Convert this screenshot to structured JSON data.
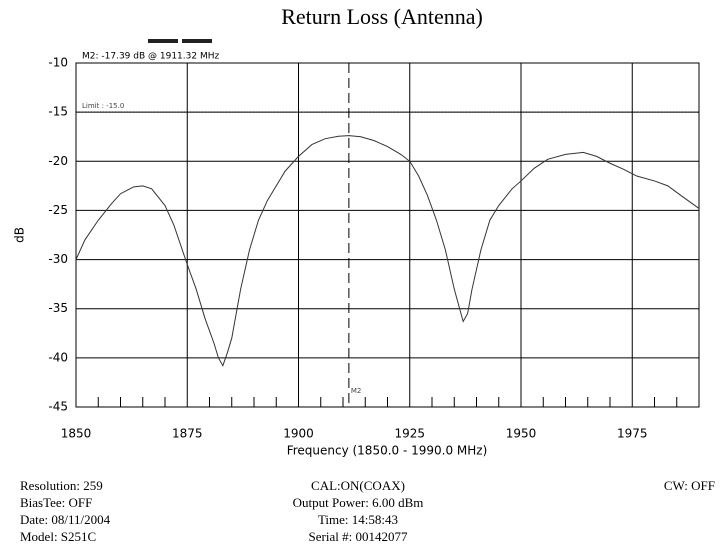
{
  "chart_data": {
    "type": "line",
    "title": "Return Loss (Antenna)",
    "x_label": "Frequency (1850.0 - 1990.0 MHz)",
    "y_label": "dB",
    "xlim": [
      1850,
      1990
    ],
    "xticks": [
      1850,
      1875,
      1900,
      1925,
      1950,
      1975
    ],
    "ylim": [
      -45,
      -10
    ],
    "yticks": [
      -10,
      -15,
      -20,
      -25,
      -30,
      -35,
      -40,
      -45
    ],
    "grid": true,
    "series": [
      {
        "name": "Return Loss",
        "color": "#333333",
        "x": [
          1850,
          1852,
          1855,
          1858,
          1860,
          1863,
          1865,
          1867,
          1870,
          1872,
          1875,
          1877,
          1879,
          1881,
          1882,
          1883,
          1884,
          1885,
          1887,
          1889,
          1891,
          1893,
          1895,
          1897,
          1900,
          1903,
          1906,
          1909,
          1911.32,
          1914,
          1917,
          1920,
          1923,
          1925,
          1927,
          1929,
          1931,
          1933,
          1935,
          1937,
          1938,
          1939,
          1941,
          1943,
          1945,
          1948,
          1950,
          1953,
          1956,
          1960,
          1964,
          1967,
          1970,
          1973,
          1976,
          1980,
          1983,
          1986,
          1990
        ],
        "values": [
          -30,
          -28,
          -26,
          -24.3,
          -23.3,
          -22.6,
          -22.5,
          -22.8,
          -24.5,
          -26.5,
          -30.5,
          -33,
          -36,
          -38.5,
          -40,
          -40.8,
          -39.5,
          -38,
          -33,
          -29,
          -26,
          -24,
          -22.5,
          -21,
          -19.5,
          -18.3,
          -17.7,
          -17.45,
          -17.39,
          -17.5,
          -17.9,
          -18.5,
          -19.3,
          -20,
          -21.5,
          -23.5,
          -26,
          -29,
          -33,
          -36.3,
          -35.5,
          -33,
          -29,
          -26,
          -24.5,
          -22.8,
          -22,
          -20.7,
          -19.8,
          -19.3,
          -19.1,
          -19.5,
          -20.2,
          -20.8,
          -21.5,
          -22,
          -22.5,
          -23.5,
          -24.8
        ]
      }
    ],
    "limit": {
      "value": -15,
      "label": "Limit : -15.0"
    },
    "marker": {
      "name": "M2",
      "x": 1911.32,
      "y": -17.39,
      "text": "M2: -17.39 dB @ 1911.32 MHz"
    }
  },
  "status": {
    "left": [
      "Resolution:  259",
      "BiasTee: OFF",
      "Date: 08/11/2004",
      "Model: S251C"
    ],
    "center": [
      "CAL:ON(COAX)",
      "Output Power: 6.00 dBm",
      "Time: 14:58:43",
      "Serial #: 00142077"
    ],
    "right": [
      "CW: OFF"
    ]
  }
}
